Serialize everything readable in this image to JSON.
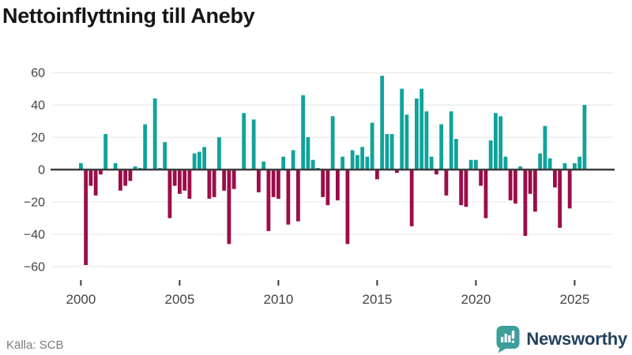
{
  "title": "Nettoinflyttning till Aneby",
  "source": "Källa: SCB",
  "branding": {
    "name": "Newsworthy",
    "icon": "newsworthy-bubble-chart-icon",
    "icon_color": "#3d9e9c",
    "text_color": "#24425c"
  },
  "chart_data": {
    "type": "bar",
    "title": "Nettoinflyttning till Aneby",
    "xlabel": "",
    "ylabel": "",
    "frequency": "quarterly",
    "start": "2000-Q1",
    "end": "2025-Q3",
    "values": [
      4,
      -59,
      -10,
      -16,
      -3,
      22,
      0,
      4,
      -13,
      -10,
      -7,
      2,
      1,
      28,
      0,
      44,
      1,
      17,
      -30,
      -10,
      -15,
      -13,
      -18,
      10,
      11,
      14,
      -18,
      -17,
      20,
      -13,
      -46,
      -12,
      0,
      35,
      0,
      31,
      -14,
      5,
      -38,
      -17,
      -18,
      8,
      -34,
      12,
      -32,
      46,
      20,
      6,
      1,
      -17,
      -22,
      33,
      -19,
      8,
      -46,
      12,
      9,
      14,
      8,
      29,
      -6,
      58,
      22,
      22,
      -2,
      50,
      34,
      -35,
      44,
      50,
      36,
      8,
      -3,
      28,
      -16,
      36,
      19,
      -22,
      -23,
      6,
      6,
      -10,
      -30,
      18,
      35,
      33,
      8,
      -19,
      -21,
      2,
      -41,
      -15,
      -26,
      10,
      27,
      7,
      -11,
      -36,
      4,
      -24,
      4,
      8,
      40
    ],
    "ylim": [
      -60,
      60
    ],
    "yticks": [
      60,
      40,
      20,
      0,
      -20,
      -40,
      -60
    ],
    "xticks": [
      2000,
      2005,
      2010,
      2015,
      2020,
      2025
    ],
    "grid": true,
    "legend": "none",
    "positive_color": "#10a39b",
    "negative_color": "#9b0d49",
    "axis_color": "#3d3d3d",
    "grid_color": "#e4e4e4",
    "tick_label_color": "#444444"
  }
}
